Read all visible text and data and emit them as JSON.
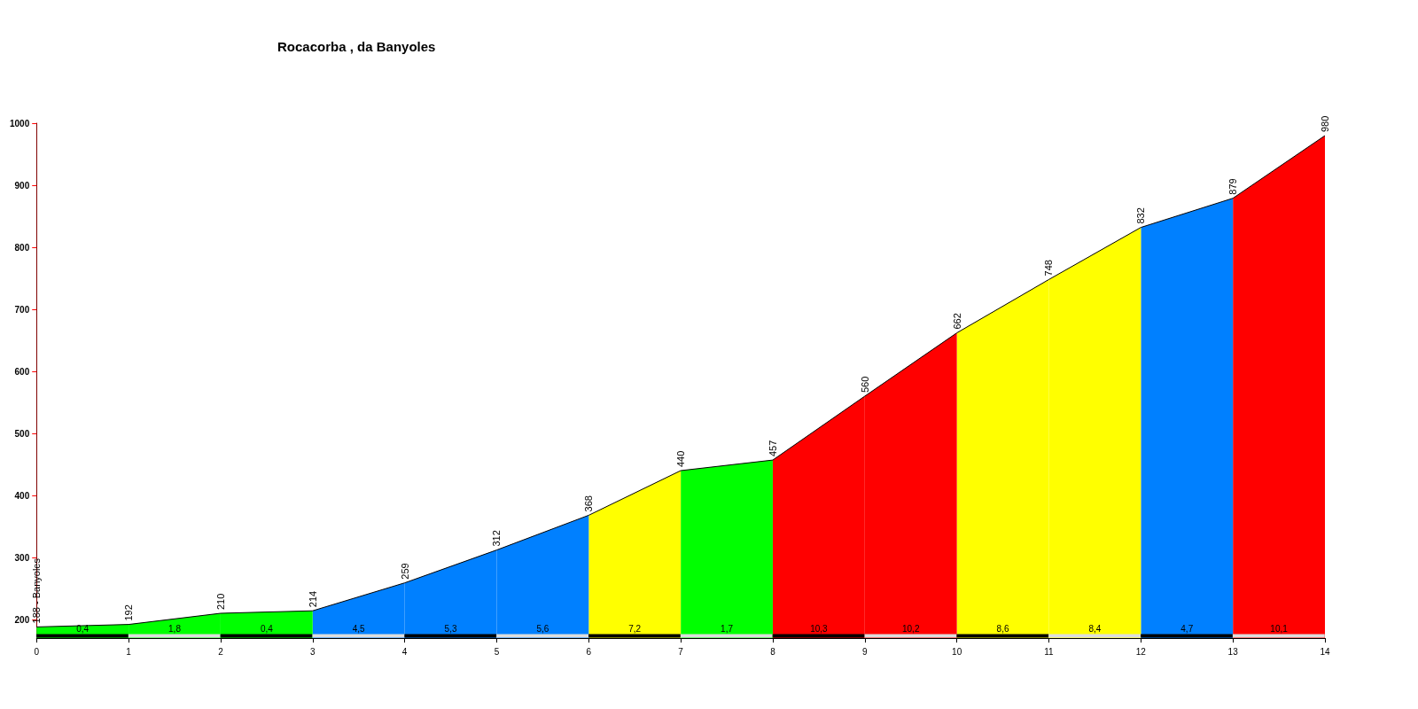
{
  "chart_data": {
    "type": "area",
    "title": "Rocacorba , da Banyoles",
    "x": [
      0,
      1,
      2,
      3,
      4,
      5,
      6,
      7,
      8,
      9,
      10,
      11,
      12,
      13,
      14
    ],
    "xlim": [
      0,
      14
    ],
    "xticks": [
      0,
      1,
      2,
      3,
      4,
      5,
      6,
      7,
      8,
      9,
      10,
      11,
      12,
      13,
      14
    ],
    "ylim": [
      170,
      1000
    ],
    "yticks": [
      200,
      300,
      400,
      500,
      600,
      700,
      800,
      900,
      1000
    ],
    "grid": false,
    "marker": "none",
    "series": [
      {
        "type": "line",
        "color": "#000000",
        "values": [
          188,
          192,
          210,
          214,
          259,
          312,
          368,
          440,
          457,
          560,
          662,
          748,
          832,
          879,
          980
        ],
        "value_labels": [
          "188 - Banyoles",
          "192",
          "210",
          "214",
          "259",
          "312",
          "368",
          "440",
          "457",
          "560",
          "662",
          "748",
          "832",
          "879",
          "980"
        ]
      },
      {
        "x": [
          0,
          1
        ],
        "values": [
          188,
          192
        ],
        "color": "#00ff00"
      },
      {
        "x": [
          1,
          2
        ],
        "values": [
          192,
          210
        ],
        "color": "#00ff00"
      },
      {
        "x": [
          2,
          3
        ],
        "values": [
          210,
          214
        ],
        "color": "#00ff00"
      },
      {
        "x": [
          3,
          4
        ],
        "values": [
          214,
          259
        ],
        "color": "#0080ff"
      },
      {
        "x": [
          4,
          5
        ],
        "values": [
          259,
          312
        ],
        "color": "#0080ff"
      },
      {
        "x": [
          5,
          6
        ],
        "values": [
          312,
          368
        ],
        "color": "#0080ff"
      },
      {
        "x": [
          6,
          7
        ],
        "values": [
          368,
          440
        ],
        "color": "#ffff00"
      },
      {
        "x": [
          7,
          8
        ],
        "values": [
          440,
          457
        ],
        "color": "#00ff00"
      },
      {
        "x": [
          8,
          9
        ],
        "values": [
          457,
          560
        ],
        "color": "#ff0000"
      },
      {
        "x": [
          9,
          10
        ],
        "values": [
          560,
          662
        ],
        "color": "#ff0000"
      },
      {
        "x": [
          10,
          11
        ],
        "values": [
          662,
          748
        ],
        "color": "#ffff00"
      },
      {
        "x": [
          11,
          12
        ],
        "values": [
          748,
          832
        ],
        "color": "#ffff00"
      },
      {
        "x": [
          12,
          13
        ],
        "values": [
          832,
          879
        ],
        "color": "#0080ff"
      },
      {
        "x": [
          13,
          14
        ],
        "values": [
          879,
          980
        ],
        "color": "#ff0000"
      }
    ],
    "annotations": [
      "0,4",
      "1,8",
      "0,4",
      "4,5",
      "5,3",
      "5,6",
      "7,2",
      "1,7",
      "10,3",
      "10,2",
      "8,6",
      "8,4",
      "4,7",
      "10,1"
    ]
  }
}
